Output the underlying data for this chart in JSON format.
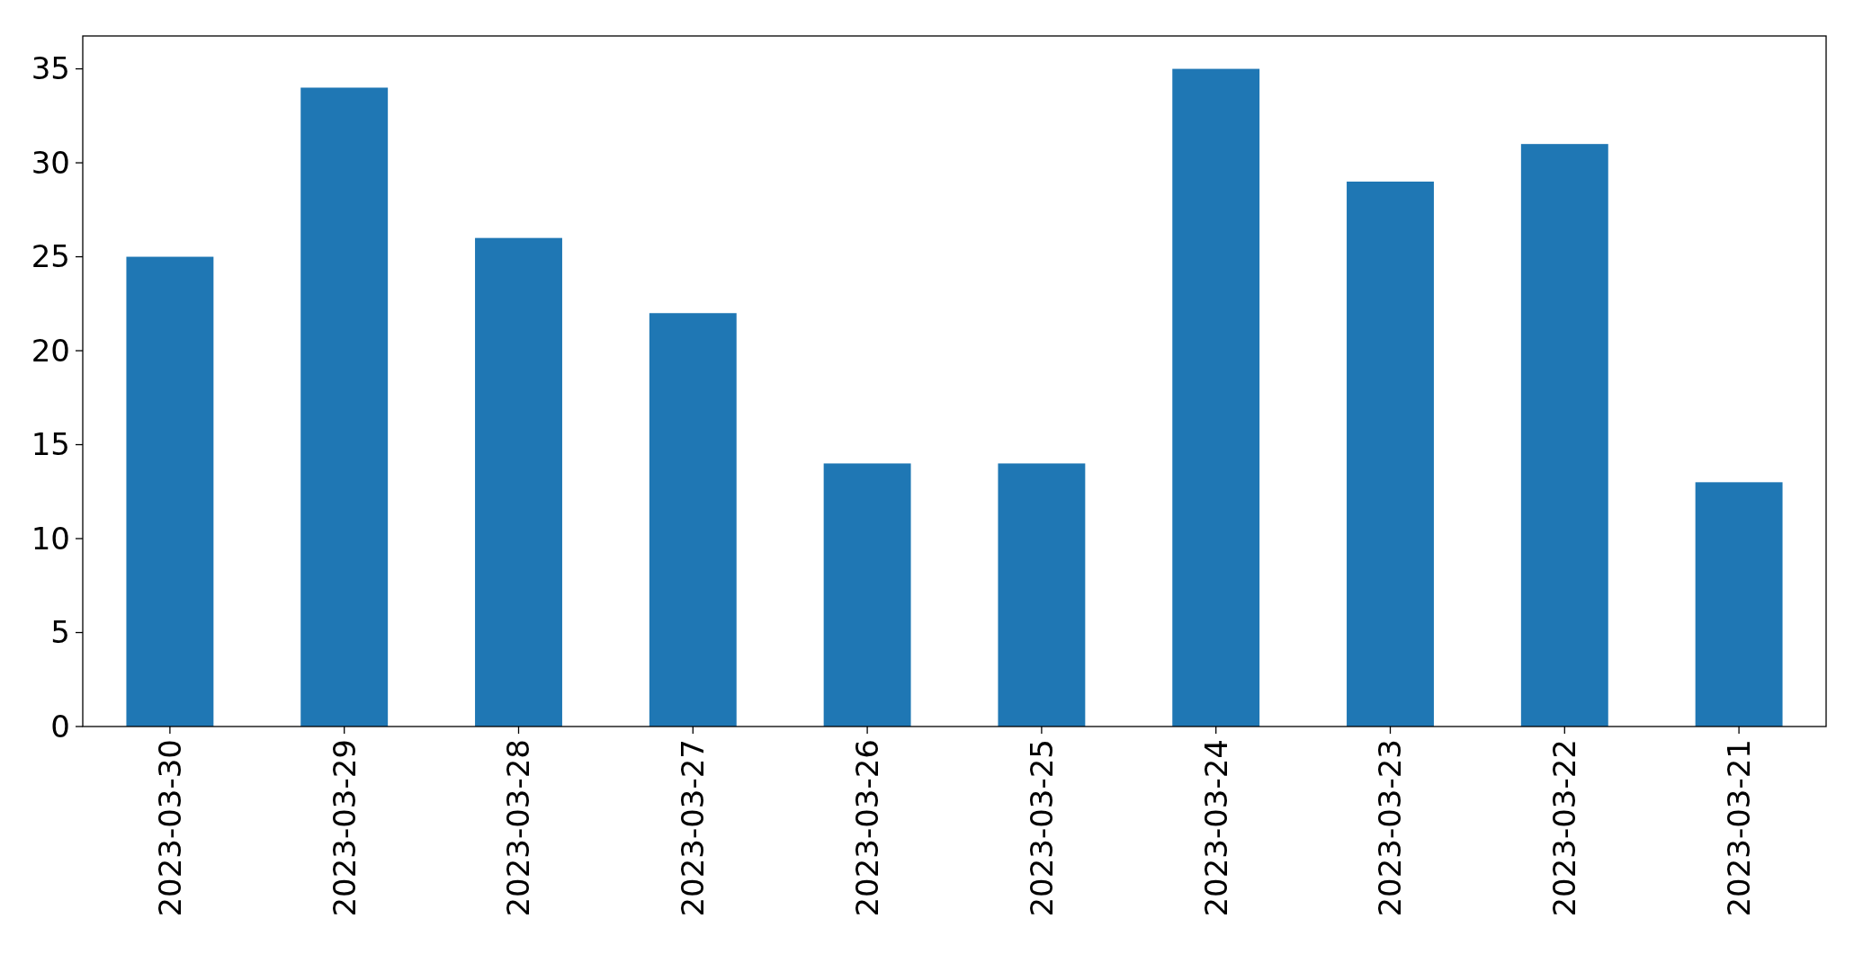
{
  "chart_data": {
    "type": "bar",
    "categories": [
      "2023-03-30",
      "2023-03-29",
      "2023-03-28",
      "2023-03-27",
      "2023-03-26",
      "2023-03-25",
      "2023-03-24",
      "2023-03-23",
      "2023-03-22",
      "2023-03-21"
    ],
    "values": [
      25,
      34,
      26,
      22,
      14,
      14,
      35,
      29,
      31,
      13
    ],
    "color": "#1f77b4",
    "ylim": [
      0,
      36.75
    ],
    "yticks": [
      0,
      5,
      10,
      15,
      20,
      25,
      30,
      35
    ],
    "grid": false
  }
}
